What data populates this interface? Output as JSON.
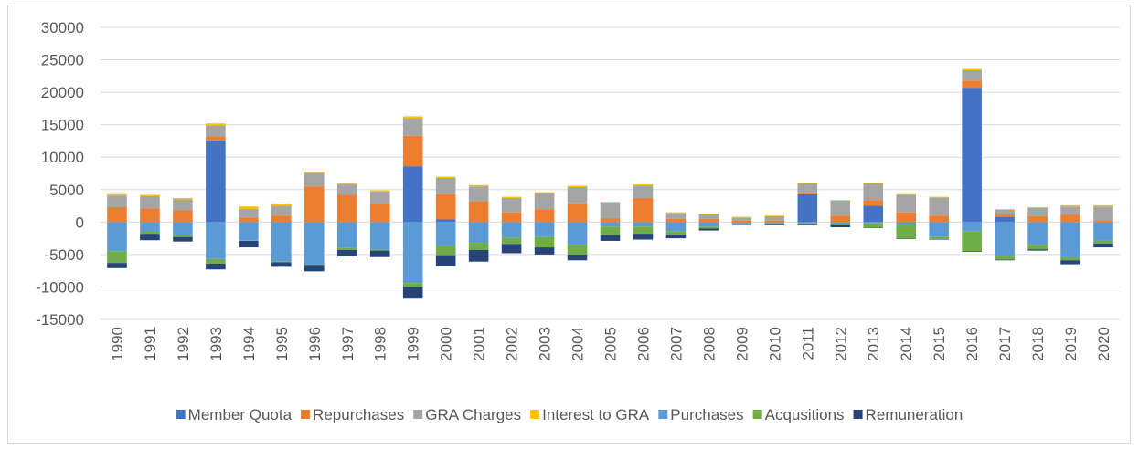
{
  "chart_data": {
    "type": "bar",
    "stacked": true,
    "categories": [
      "1990",
      "1991",
      "1992",
      "1993",
      "1994",
      "1995",
      "1996",
      "1997",
      "1998",
      "1999",
      "2000",
      "2001",
      "2002",
      "2003",
      "2004",
      "2005",
      "2006",
      "2007",
      "2008",
      "2009",
      "2010",
      "2011",
      "2012",
      "2013",
      "2014",
      "2015",
      "2016",
      "2017",
      "2018",
      "2019",
      "2020"
    ],
    "series": [
      {
        "name": "Member Quota",
        "color": "#4472c4",
        "values": [
          0,
          0,
          0,
          12600,
          0,
          0,
          0,
          0,
          0,
          8600,
          400,
          0,
          0,
          0,
          0,
          0,
          0,
          0,
          0,
          0,
          0,
          4300,
          0,
          2500,
          0,
          0,
          20700,
          800,
          0,
          0,
          0
        ]
      },
      {
        "name": "Repurchases",
        "color": "#ed7d31",
        "values": [
          2300,
          2100,
          1800,
          600,
          700,
          1000,
          5500,
          4200,
          2800,
          4700,
          3900,
          3200,
          1500,
          2000,
          2900,
          600,
          3700,
          500,
          500,
          200,
          200,
          300,
          1000,
          900,
          1500,
          1000,
          1100,
          300,
          900,
          1100,
          200
        ]
      },
      {
        "name": "GRA Charges",
        "color": "#a5a5a5",
        "values": [
          1800,
          1900,
          1700,
          1700,
          1300,
          1500,
          2000,
          1600,
          1900,
          2700,
          2500,
          2300,
          2200,
          2400,
          2500,
          2400,
          1900,
          900,
          700,
          500,
          700,
          1400,
          2300,
          2600,
          2700,
          2800,
          1600,
          800,
          1300,
          1300,
          2200
        ]
      },
      {
        "name": "Interest to GRA",
        "color": "#ffc000",
        "values": [
          200,
          200,
          200,
          300,
          400,
          300,
          200,
          200,
          200,
          300,
          200,
          200,
          200,
          200,
          200,
          100,
          200,
          100,
          100,
          100,
          100,
          100,
          100,
          100,
          100,
          100,
          200,
          100,
          100,
          200,
          200
        ]
      },
      {
        "name": "Purchases",
        "color": "#5b9bd5",
        "values": [
          -4500,
          -1500,
          -2000,
          -5700,
          -2800,
          -6100,
          -6500,
          -4000,
          -4300,
          -9400,
          -3600,
          -3200,
          -2400,
          -2300,
          -3500,
          -700,
          -700,
          -1400,
          -700,
          -200,
          -200,
          -200,
          -400,
          -200,
          -400,
          -2300,
          -1400,
          -5200,
          -3500,
          -5500,
          -2900
        ]
      },
      {
        "name": "Acqusitions",
        "color": "#70ad47",
        "values": [
          -1800,
          -300,
          -300,
          -700,
          -100,
          -100,
          -100,
          -300,
          -100,
          -600,
          -1500,
          -1100,
          -1000,
          -1600,
          -1500,
          -1300,
          -1100,
          -500,
          -300,
          -200,
          -100,
          -100,
          -100,
          -600,
          -2100,
          -300,
          -3100,
          -600,
          -700,
          -400,
          -400
        ]
      },
      {
        "name": "Remuneration",
        "color": "#264478",
        "values": [
          -800,
          -1000,
          -700,
          -900,
          -1000,
          -700,
          -1000,
          -1000,
          -1000,
          -1800,
          -1700,
          -1800,
          -1400,
          -1100,
          -900,
          -900,
          -900,
          -600,
          -300,
          -100,
          -100,
          -100,
          -300,
          -100,
          -100,
          -100,
          -100,
          -100,
          -200,
          -600,
          -600
        ]
      }
    ],
    "ylim": [
      -15000,
      30000
    ],
    "yticks": [
      -15000,
      -10000,
      -5000,
      0,
      5000,
      10000,
      15000,
      20000,
      25000,
      30000
    ],
    "grid": true,
    "legend": "bottom"
  }
}
